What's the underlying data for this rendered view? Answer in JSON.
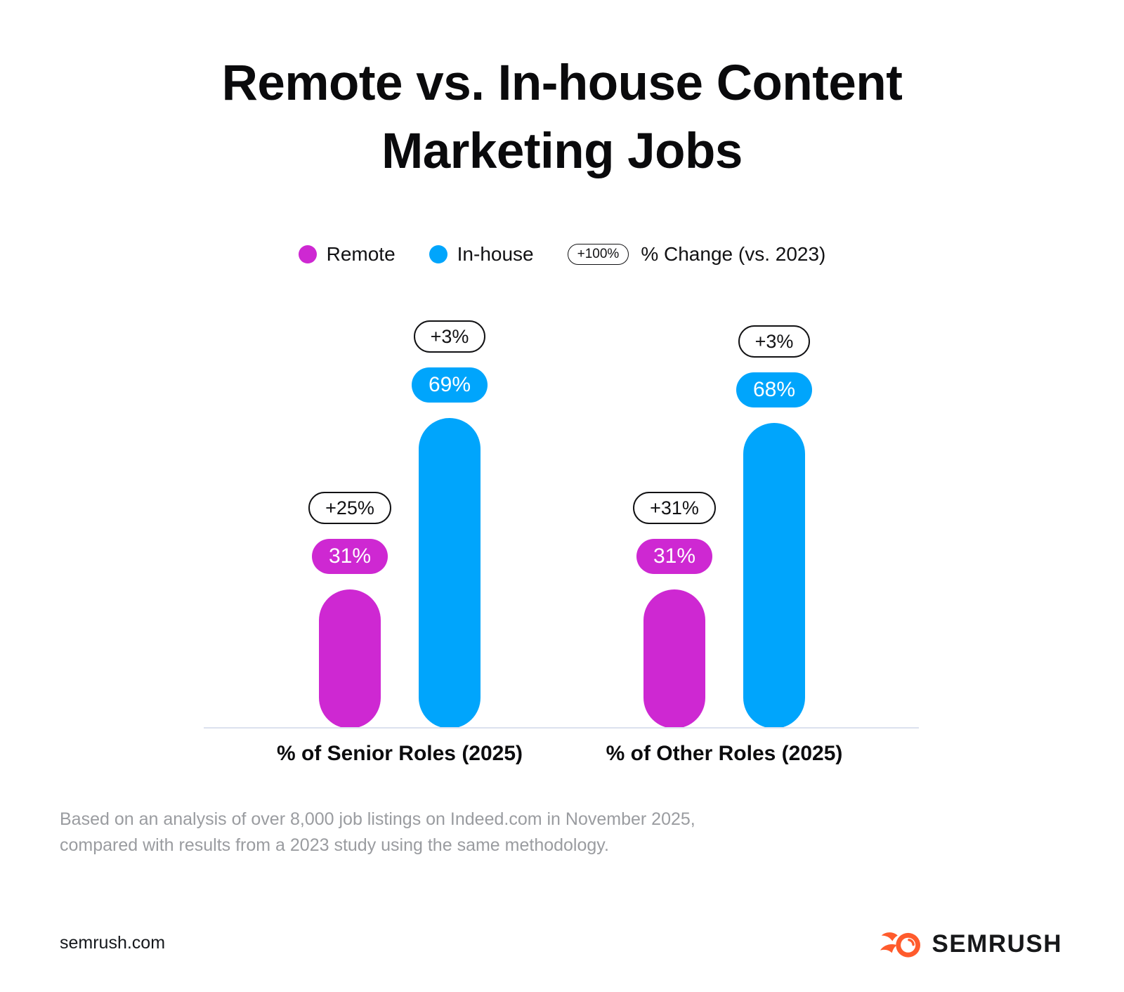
{
  "title": {
    "line1": "Remote vs. In-house Content",
    "line2": "Marketing Jobs"
  },
  "legend": {
    "items": [
      {
        "label": "Remote",
        "color": "#CE28D2"
      },
      {
        "label": "In-house",
        "color": "#00A5FC"
      }
    ],
    "change_pill_example": "+100%",
    "change_label": "% Change (vs. 2023)"
  },
  "chart_data": {
    "type": "bar",
    "categories": [
      "% of Senior Roles (2025)",
      "% of Other Roles (2025)"
    ],
    "series": [
      {
        "name": "Remote",
        "color": "#CE28D2",
        "values": [
          31,
          31
        ],
        "value_labels": [
          "31%",
          "31%"
        ],
        "pct_change_vs_2023": [
          "+25%",
          "+31%"
        ]
      },
      {
        "name": "In-house",
        "color": "#00A5FC",
        "values": [
          69,
          68
        ],
        "value_labels": [
          "69%",
          "68%"
        ],
        "pct_change_vs_2023": [
          "+3%",
          "+3%"
        ]
      }
    ],
    "xlabel": "",
    "ylabel": "",
    "ylim": [
      0,
      100
    ],
    "grid": false,
    "legend_position": "top",
    "baseline_color": "#DCE1EE"
  },
  "footnote": {
    "line1": "Based on an analysis of over 8,000 job listings on Indeed.com in November 2025,",
    "line2": "compared with results from a 2023 study using the same methodology."
  },
  "footer": {
    "site": "semrush.com",
    "brand": "SEMRUSH",
    "brand_color": "#FF5B2C"
  }
}
